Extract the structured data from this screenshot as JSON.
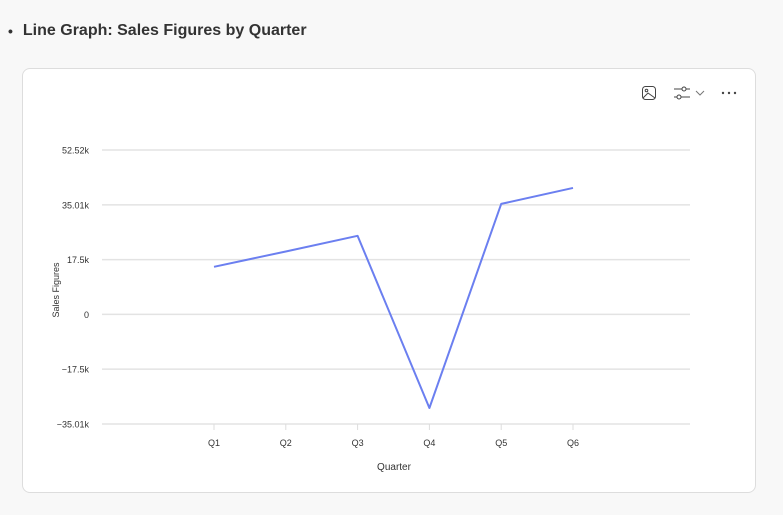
{
  "heading": {
    "bullet": "•",
    "title": "Line Graph: Sales Figures by Quarter"
  },
  "toolbar": {
    "icons": [
      "image-icon",
      "filter-sliders-icon",
      "chevron-down-icon",
      "more-icon"
    ]
  },
  "chart_data": {
    "type": "line",
    "title": "",
    "xlabel": "Quarter",
    "ylabel": "Sales Figures",
    "categories": [
      "Q1",
      "Q2",
      "Q3",
      "Q4",
      "Q5",
      "Q6"
    ],
    "values": [
      15200,
      20100,
      25100,
      -29900,
      35300,
      40400
    ],
    "ylim": [
      -35010,
      52520
    ],
    "yticks": [
      52520,
      35010,
      17500,
      0,
      -17500,
      -35010
    ],
    "ytick_labels": [
      "52.52k",
      "35.01k",
      "17.5k",
      "0",
      "−17.5k",
      "−35.01k"
    ],
    "grid": true,
    "color": "#6b7ff0"
  }
}
